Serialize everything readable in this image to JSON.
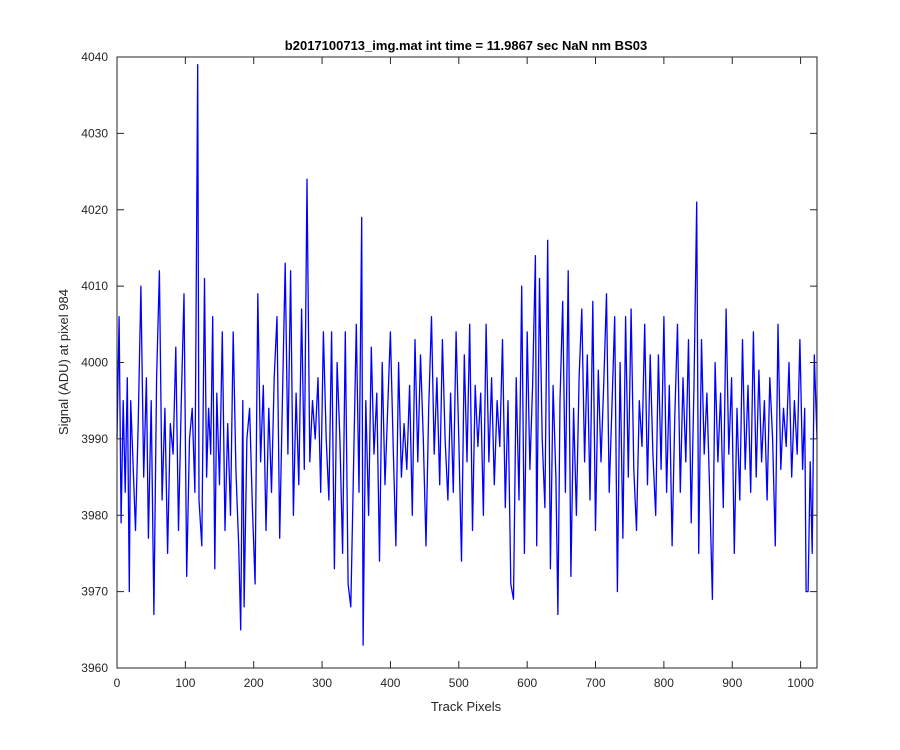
{
  "chart_data": {
    "type": "line",
    "title": "b2017100713_img.mat int time = 11.9867 sec  NaN nm BS03",
    "xlabel": "Track Pixels",
    "ylabel": "Signal (ADU) at pixel 984",
    "xlim": [
      0,
      1024
    ],
    "ylim": [
      3960,
      4040
    ],
    "xticks": [
      0,
      100,
      200,
      300,
      400,
      500,
      600,
      700,
      800,
      900,
      1000
    ],
    "yticks": [
      3960,
      3970,
      3980,
      3990,
      4000,
      4010,
      4020,
      4030,
      4040
    ],
    "grid": false,
    "colors": {
      "line": "#0000ff",
      "axes": "#262626"
    },
    "series": [
      {
        "points": [
          [
            0,
            3990
          ],
          [
            3,
            4006
          ],
          [
            6,
            3979
          ],
          [
            9,
            3995
          ],
          [
            12,
            3983
          ],
          [
            15,
            3998
          ],
          [
            18,
            3970
          ],
          [
            20,
            3995
          ],
          [
            23,
            3988
          ],
          [
            27,
            3978
          ],
          [
            31,
            3992
          ],
          [
            35,
            4010
          ],
          [
            39,
            3985
          ],
          [
            43,
            3998
          ],
          [
            46,
            3977
          ],
          [
            50,
            3995
          ],
          [
            54,
            3967
          ],
          [
            58,
            3998
          ],
          [
            62,
            4012
          ],
          [
            66,
            3982
          ],
          [
            70,
            3994
          ],
          [
            74,
            3975
          ],
          [
            78,
            3992
          ],
          [
            82,
            3988
          ],
          [
            86,
            4002
          ],
          [
            90,
            3978
          ],
          [
            94,
            3995
          ],
          [
            98,
            4009
          ],
          [
            102,
            3972
          ],
          [
            106,
            3990
          ],
          [
            110,
            3994
          ],
          [
            114,
            3983
          ],
          [
            118,
            4039
          ],
          [
            120,
            3982
          ],
          [
            124,
            3976
          ],
          [
            128,
            4011
          ],
          [
            131,
            3985
          ],
          [
            134,
            3994
          ],
          [
            137,
            3988
          ],
          [
            140,
            4006
          ],
          [
            143,
            3973
          ],
          [
            146,
            3996
          ],
          [
            150,
            3984
          ],
          [
            154,
            4004
          ],
          [
            158,
            3978
          ],
          [
            162,
            3992
          ],
          [
            166,
            3980
          ],
          [
            170,
            4004
          ],
          [
            174,
            3986
          ],
          [
            178,
            3976
          ],
          [
            181,
            3965
          ],
          [
            184,
            3995
          ],
          [
            186,
            3968
          ],
          [
            190,
            3990
          ],
          [
            194,
            3994
          ],
          [
            198,
            3981
          ],
          [
            202,
            3971
          ],
          [
            206,
            4009
          ],
          [
            210,
            3987
          ],
          [
            214,
            3997
          ],
          [
            218,
            3978
          ],
          [
            222,
            3994
          ],
          [
            226,
            3983
          ],
          [
            230,
            3998
          ],
          [
            234,
            4006
          ],
          [
            238,
            3977
          ],
          [
            242,
            3995
          ],
          [
            246,
            4013
          ],
          [
            250,
            3988
          ],
          [
            254,
            4012
          ],
          [
            258,
            3980
          ],
          [
            262,
            3996
          ],
          [
            266,
            3984
          ],
          [
            270,
            4007
          ],
          [
            274,
            3986
          ],
          [
            278,
            4024
          ],
          [
            282,
            3987
          ],
          [
            286,
            3995
          ],
          [
            290,
            3990
          ],
          [
            294,
            3998
          ],
          [
            298,
            3983
          ],
          [
            302,
            4004
          ],
          [
            306,
            3990
          ],
          [
            310,
            3982
          ],
          [
            314,
            4004
          ],
          [
            318,
            3973
          ],
          [
            322,
            4000
          ],
          [
            326,
            3990
          ],
          [
            330,
            3975
          ],
          [
            334,
            4004
          ],
          [
            338,
            3971
          ],
          [
            342,
            3968
          ],
          [
            346,
            3986
          ],
          [
            350,
            4005
          ],
          [
            354,
            3983
          ],
          [
            358,
            4019
          ],
          [
            360,
            3963
          ],
          [
            364,
            3995
          ],
          [
            368,
            3980
          ],
          [
            372,
            4002
          ],
          [
            376,
            3988
          ],
          [
            380,
            3996
          ],
          [
            384,
            3974
          ],
          [
            388,
            4000
          ],
          [
            392,
            3984
          ],
          [
            396,
            3994
          ],
          [
            400,
            4004
          ],
          [
            404,
            3989
          ],
          [
            408,
            3976
          ],
          [
            412,
            4000
          ],
          [
            416,
            3985
          ],
          [
            420,
            3992
          ],
          [
            424,
            3986
          ],
          [
            428,
            3997
          ],
          [
            432,
            3980
          ],
          [
            436,
            4003
          ],
          [
            440,
            3987
          ],
          [
            444,
            4001
          ],
          [
            448,
            3990
          ],
          [
            452,
            3976
          ],
          [
            456,
            3994
          ],
          [
            460,
            4006
          ],
          [
            464,
            3988
          ],
          [
            468,
            3998
          ],
          [
            472,
            3984
          ],
          [
            476,
            4003
          ],
          [
            480,
            3990
          ],
          [
            484,
            3982
          ],
          [
            488,
            3996
          ],
          [
            492,
            3983
          ],
          [
            496,
            4004
          ],
          [
            500,
            3990
          ],
          [
            504,
            3974
          ],
          [
            508,
            4001
          ],
          [
            512,
            3987
          ],
          [
            516,
            4005
          ],
          [
            520,
            3978
          ],
          [
            524,
            3997
          ],
          [
            528,
            3989
          ],
          [
            532,
            3996
          ],
          [
            536,
            3980
          ],
          [
            540,
            4005
          ],
          [
            544,
            3987
          ],
          [
            548,
            3998
          ],
          [
            552,
            3984
          ],
          [
            556,
            3995
          ],
          [
            560,
            3989
          ],
          [
            564,
            4003
          ],
          [
            568,
            3981
          ],
          [
            572,
            3995
          ],
          [
            576,
            3971
          ],
          [
            580,
            3969
          ],
          [
            584,
            3998
          ],
          [
            588,
            3982
          ],
          [
            592,
            4010
          ],
          [
            596,
            3975
          ],
          [
            600,
            4004
          ],
          [
            604,
            3986
          ],
          [
            608,
            3997
          ],
          [
            612,
            4014
          ],
          [
            614,
            3976
          ],
          [
            618,
            4011
          ],
          [
            622,
            3990
          ],
          [
            626,
            3981
          ],
          [
            630,
            4016
          ],
          [
            634,
            3973
          ],
          [
            638,
            3997
          ],
          [
            642,
            3985
          ],
          [
            645,
            3967
          ],
          [
            648,
            3995
          ],
          [
            652,
            4008
          ],
          [
            656,
            3983
          ],
          [
            660,
            4012
          ],
          [
            664,
            3972
          ],
          [
            668,
            3994
          ],
          [
            672,
            3980
          ],
          [
            676,
            3998
          ],
          [
            680,
            4007
          ],
          [
            684,
            3987
          ],
          [
            688,
            4001
          ],
          [
            692,
            3982
          ],
          [
            696,
            4008
          ],
          [
            700,
            3978
          ],
          [
            704,
            3999
          ],
          [
            708,
            3987
          ],
          [
            712,
            3997
          ],
          [
            716,
            4009
          ],
          [
            720,
            3983
          ],
          [
            724,
            3994
          ],
          [
            728,
            4006
          ],
          [
            732,
            3970
          ],
          [
            736,
            4000
          ],
          [
            740,
            3977
          ],
          [
            744,
            4006
          ],
          [
            748,
            3985
          ],
          [
            752,
            4007
          ],
          [
            756,
            3986
          ],
          [
            760,
            3978
          ],
          [
            764,
            3995
          ],
          [
            768,
            3989
          ],
          [
            772,
            4005
          ],
          [
            776,
            3984
          ],
          [
            780,
            4001
          ],
          [
            784,
            3988
          ],
          [
            788,
            3980
          ],
          [
            792,
            4001
          ],
          [
            796,
            3986
          ],
          [
            800,
            4006
          ],
          [
            804,
            3983
          ],
          [
            808,
            3997
          ],
          [
            812,
            3976
          ],
          [
            816,
            3993
          ],
          [
            820,
            4005
          ],
          [
            824,
            3983
          ],
          [
            828,
            3998
          ],
          [
            832,
            3987
          ],
          [
            836,
            4003
          ],
          [
            840,
            3979
          ],
          [
            844,
            3997
          ],
          [
            848,
            4021
          ],
          [
            851,
            3975
          ],
          [
            855,
            4003
          ],
          [
            859,
            3988
          ],
          [
            863,
            3996
          ],
          [
            867,
            3983
          ],
          [
            871,
            3969
          ],
          [
            875,
            4000
          ],
          [
            879,
            3987
          ],
          [
            883,
            3996
          ],
          [
            887,
            3981
          ],
          [
            891,
            4007
          ],
          [
            895,
            3988
          ],
          [
            899,
            3998
          ],
          [
            903,
            3975
          ],
          [
            907,
            3994
          ],
          [
            911,
            3982
          ],
          [
            915,
            4003
          ],
          [
            919,
            3986
          ],
          [
            923,
            3997
          ],
          [
            927,
            3983
          ],
          [
            931,
            4004
          ],
          [
            935,
            3985
          ],
          [
            939,
            3999
          ],
          [
            943,
            3987
          ],
          [
            947,
            3995
          ],
          [
            951,
            3982
          ],
          [
            955,
            3998
          ],
          [
            959,
            3990
          ],
          [
            963,
            3976
          ],
          [
            967,
            4005
          ],
          [
            971,
            3986
          ],
          [
            975,
            3994
          ],
          [
            979,
            3989
          ],
          [
            983,
            4000
          ],
          [
            987,
            3985
          ],
          [
            991,
            3995
          ],
          [
            995,
            3988
          ],
          [
            999,
            4003
          ],
          [
            1003,
            3986
          ],
          [
            1006,
            3994
          ],
          [
            1008,
            3970
          ],
          [
            1011,
            3970
          ],
          [
            1014,
            3987
          ],
          [
            1017,
            3975
          ],
          [
            1020,
            4001
          ],
          [
            1024,
            3990
          ]
        ]
      }
    ]
  }
}
